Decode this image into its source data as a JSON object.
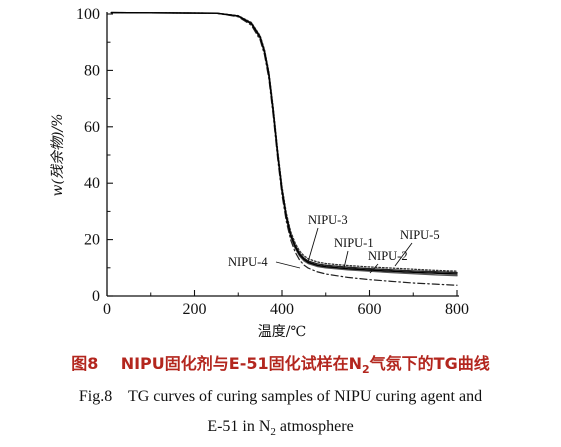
{
  "chart_data": {
    "type": "line",
    "title": "",
    "xlabel": "温度/℃",
    "ylabel": "w(残余物)/%",
    "xlim": [
      0,
      800
    ],
    "ylim": [
      0,
      100
    ],
    "xticks": [
      0,
      200,
      400,
      600,
      800
    ],
    "yticks": [
      0,
      20,
      40,
      60,
      80,
      100
    ],
    "grid": false,
    "legend": "inline labels",
    "series": [
      {
        "name": "NIPU-1",
        "style": "solid",
        "color": "#222222",
        "x": [
          10,
          250,
          300,
          330,
          350,
          360,
          370,
          380,
          390,
          400,
          410,
          420,
          430,
          440,
          450,
          460,
          480,
          500,
          550,
          600,
          650,
          700,
          750,
          800
        ],
        "y": [
          100.5,
          100.3,
          99.3,
          96.8,
          92.0,
          87.0,
          79.0,
          66.0,
          51.0,
          38.0,
          28.5,
          22.0,
          18.0,
          15.2,
          13.5,
          12.4,
          11.4,
          10.9,
          10.2,
          9.7,
          9.3,
          8.9,
          8.6,
          8.3
        ]
      },
      {
        "name": "NIPU-2",
        "style": "solid",
        "color": "#555555",
        "x": [
          10,
          250,
          300,
          330,
          350,
          360,
          370,
          380,
          390,
          400,
          410,
          420,
          430,
          440,
          450,
          460,
          480,
          500,
          550,
          600,
          650,
          700,
          750,
          800
        ],
        "y": [
          100.5,
          100.3,
          99.2,
          96.5,
          91.5,
          86.3,
          78.0,
          65.0,
          50.0,
          37.0,
          27.5,
          21.0,
          17.0,
          14.2,
          12.5,
          11.5,
          10.5,
          10.0,
          9.3,
          8.8,
          8.3,
          7.9,
          7.5,
          7.2
        ]
      },
      {
        "name": "NIPU-3",
        "style": "dotted",
        "color": "#333333",
        "x": [
          10,
          250,
          300,
          330,
          350,
          360,
          370,
          380,
          390,
          400,
          410,
          420,
          430,
          440,
          450,
          460,
          480,
          500,
          550,
          600,
          650,
          700,
          750,
          800
        ],
        "y": [
          100.5,
          100.3,
          99.4,
          97.0,
          92.3,
          87.4,
          79.5,
          66.8,
          51.8,
          38.8,
          29.3,
          22.8,
          18.8,
          16.0,
          14.3,
          13.2,
          12.1,
          11.5,
          10.8,
          10.3,
          9.9,
          9.5,
          9.1,
          8.8
        ]
      },
      {
        "name": "NIPU-4",
        "style": "dashdot",
        "color": "#222222",
        "x": [
          10,
          250,
          300,
          330,
          350,
          360,
          370,
          380,
          390,
          400,
          410,
          420,
          430,
          440,
          450,
          460,
          480,
          500,
          550,
          600,
          650,
          700,
          750,
          800
        ],
        "y": [
          100.5,
          100.3,
          99.0,
          96.0,
          90.8,
          85.5,
          77.0,
          63.8,
          48.8,
          35.8,
          26.3,
          19.8,
          15.6,
          12.8,
          11.0,
          9.9,
          8.6,
          7.8,
          6.6,
          5.8,
          5.2,
          4.6,
          4.2,
          3.8
        ]
      },
      {
        "name": "NIPU-5",
        "style": "solid",
        "color": "#000000",
        "x": [
          10,
          250,
          300,
          330,
          350,
          360,
          370,
          380,
          390,
          400,
          410,
          420,
          430,
          440,
          450,
          460,
          480,
          500,
          550,
          600,
          650,
          700,
          750,
          800
        ],
        "y": [
          100.5,
          100.3,
          99.3,
          96.6,
          91.7,
          86.6,
          78.4,
          65.5,
          50.5,
          37.5,
          28.0,
          21.5,
          17.5,
          14.7,
          13.0,
          11.9,
          10.9,
          10.4,
          9.7,
          9.2,
          8.8,
          8.4,
          8.1,
          7.8
        ]
      }
    ],
    "annotations": [
      {
        "text": "NIPU-3"
      },
      {
        "text": "NIPU-1"
      },
      {
        "text": "NIPU-5"
      },
      {
        "text": "NIPU-2"
      },
      {
        "text": "NIPU-4"
      }
    ]
  },
  "caption": {
    "cn_prefix": "图8",
    "cn_text": "NIPU固化剂与E-51固化试样在N",
    "cn_sub": "2",
    "cn_suffix": "气氛下的TG曲线",
    "en_line1": "Fig.8    TG curves of curing samples of NIPU curing agent and",
    "en_line2_prefix": "E-51 in N",
    "en_line2_sub": "2",
    "en_line2_suffix": " atmosphere"
  }
}
